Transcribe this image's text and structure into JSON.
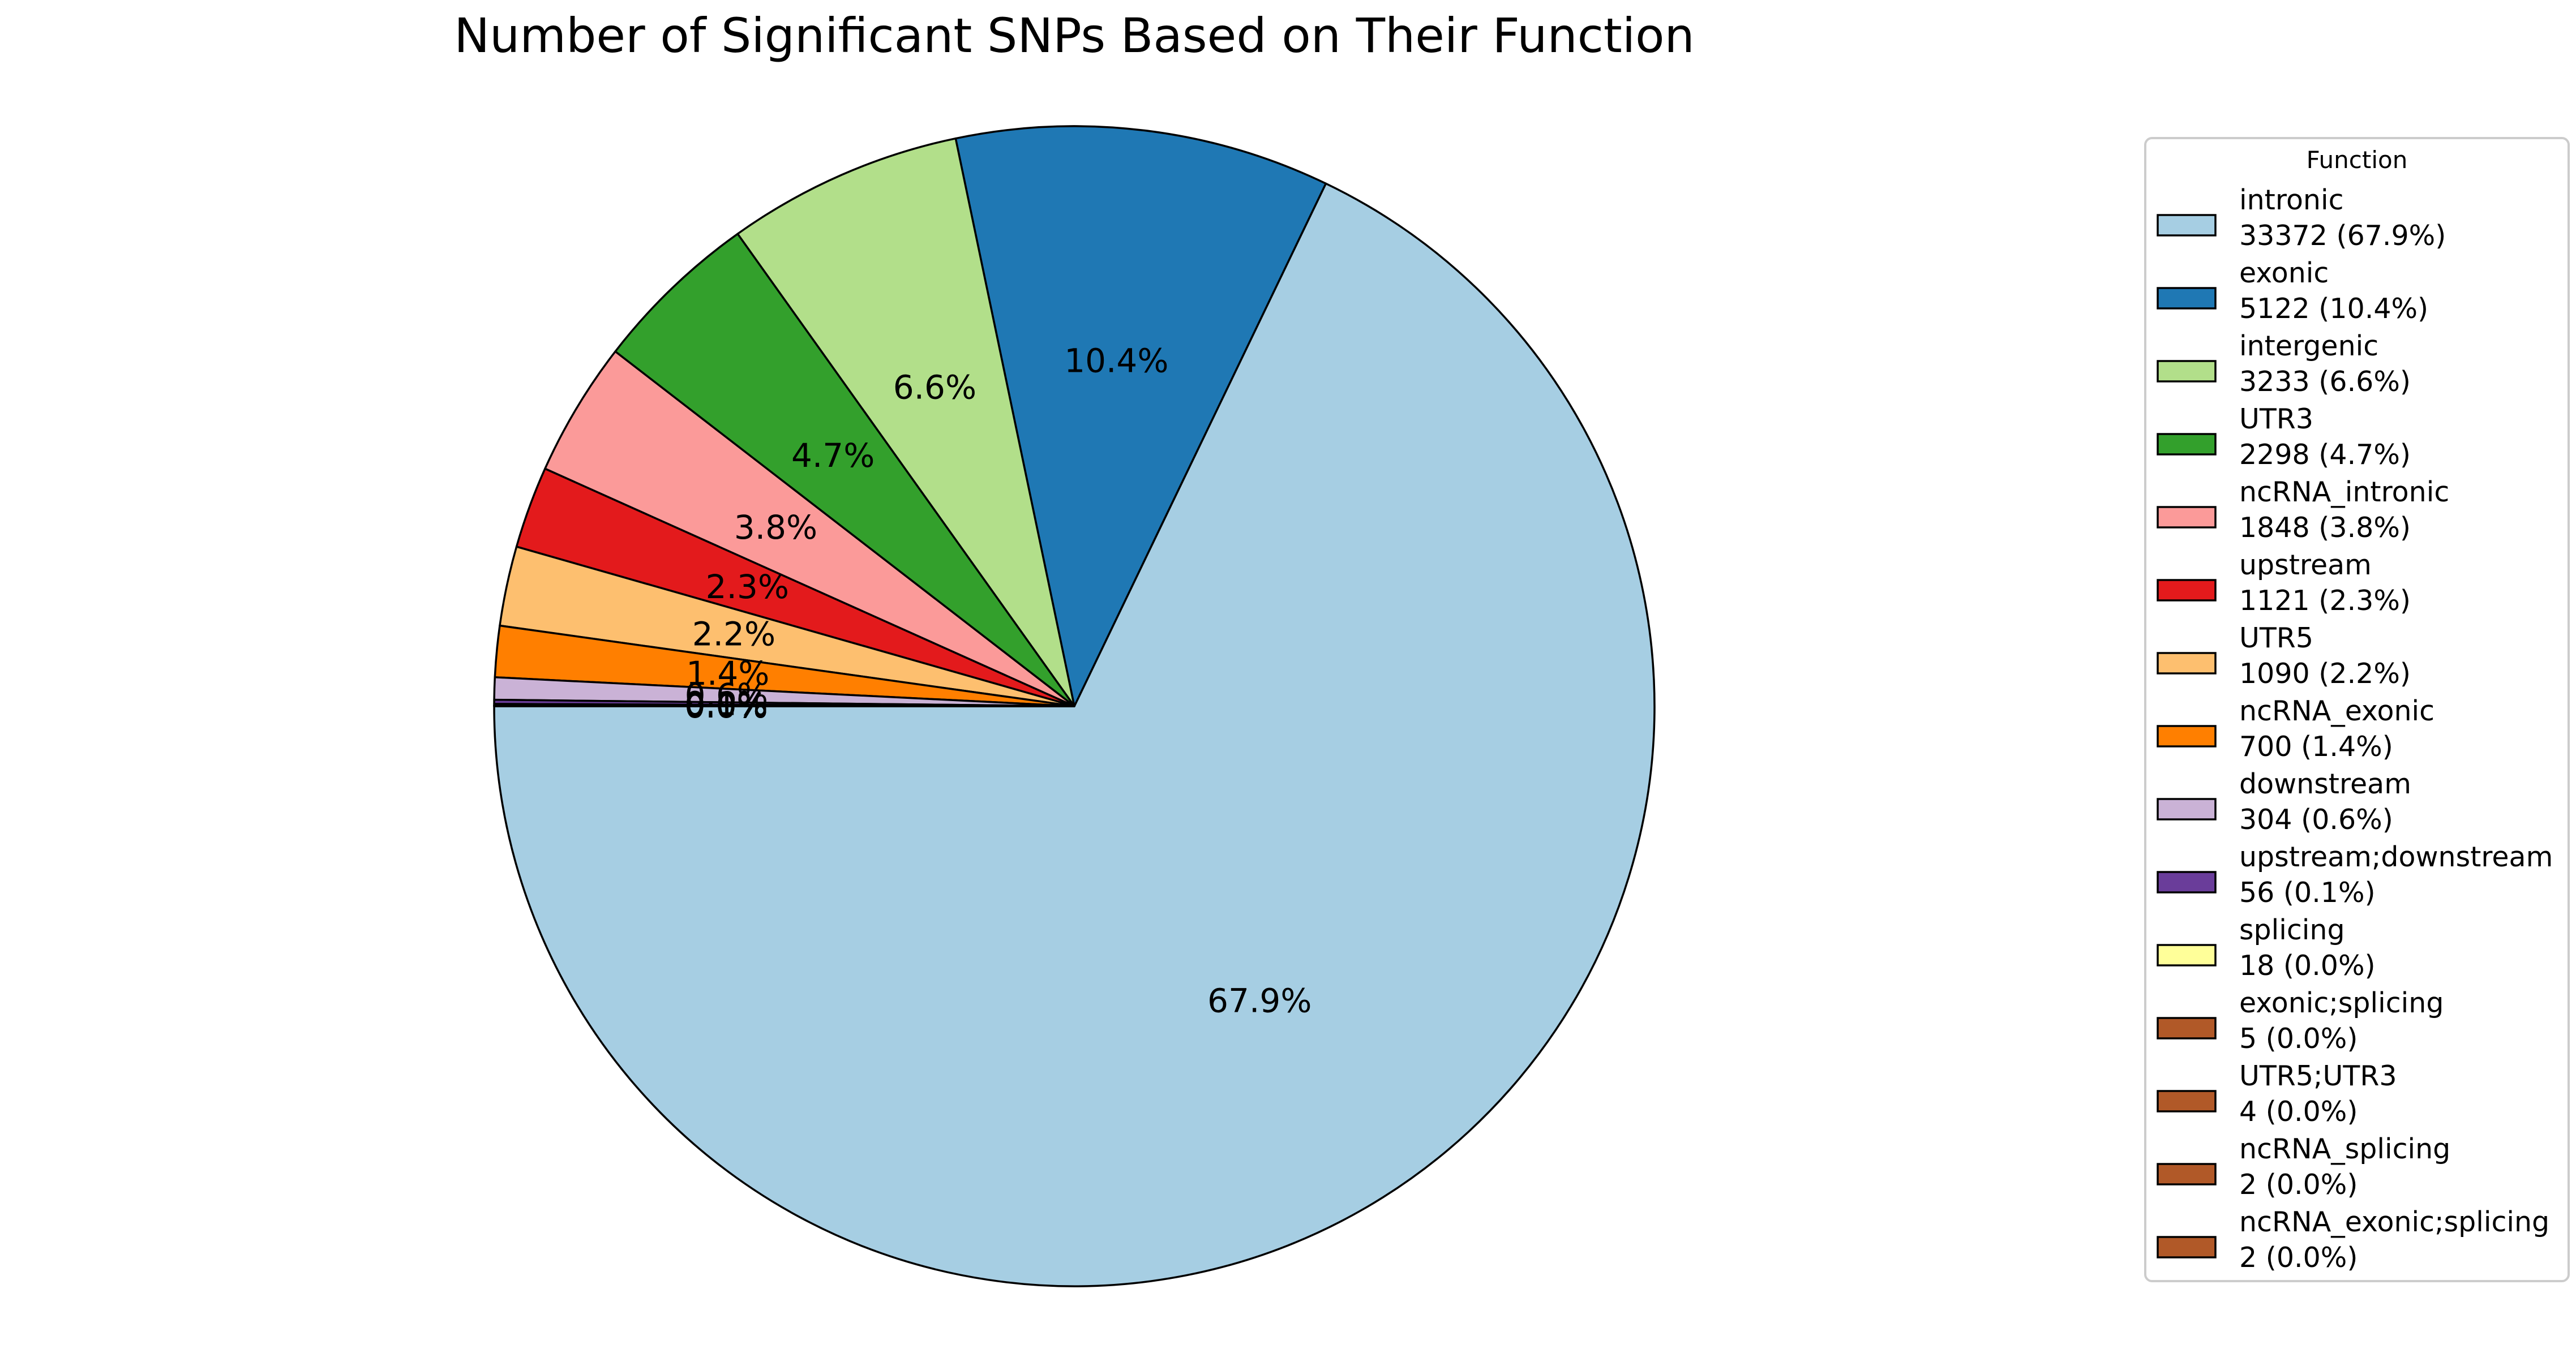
{
  "chart_data": {
    "type": "pie",
    "title": "Number of Significant SNPs Based on Their Function",
    "legend_title": "Function",
    "legend_position": "right",
    "start_angle_deg": 180,
    "direction": "counterclockwise",
    "slices": [
      {
        "label": "intronic",
        "value": 33372,
        "pct": "67.9%",
        "legend_line": "33372 (67.9%)",
        "color": "#a6cee3"
      },
      {
        "label": "exonic",
        "value": 5122,
        "pct": "10.4%",
        "legend_line": "5122 (10.4%)",
        "color": "#1f78b4"
      },
      {
        "label": "intergenic",
        "value": 3233,
        "pct": "6.6%",
        "legend_line": "3233 (6.6%)",
        "color": "#b2df8a"
      },
      {
        "label": "UTR3",
        "value": 2298,
        "pct": "4.7%",
        "legend_line": "2298 (4.7%)",
        "color": "#33a02c"
      },
      {
        "label": "ncRNA_intronic",
        "value": 1848,
        "pct": "3.8%",
        "legend_line": "1848 (3.8%)",
        "color": "#fb9a99"
      },
      {
        "label": "upstream",
        "value": 1121,
        "pct": "2.3%",
        "legend_line": "1121 (2.3%)",
        "color": "#e31a1c"
      },
      {
        "label": "UTR5",
        "value": 1090,
        "pct": "2.2%",
        "legend_line": "1090 (2.2%)",
        "color": "#fdbf6f"
      },
      {
        "label": "ncRNA_exonic",
        "value": 700,
        "pct": "1.4%",
        "legend_line": "700 (1.4%)",
        "color": "#ff7f00"
      },
      {
        "label": "downstream",
        "value": 304,
        "pct": "0.6%",
        "legend_line": "304 (0.6%)",
        "color": "#cab2d6"
      },
      {
        "label": "upstream;downstream",
        "value": 56,
        "pct": "0.1%",
        "legend_line": "56 (0.1%)",
        "color": "#6a3d9a"
      },
      {
        "label": "splicing",
        "value": 18,
        "pct": "0.0%",
        "legend_line": "18 (0.0%)",
        "color": "#ffff99"
      },
      {
        "label": "exonic;splicing",
        "value": 5,
        "pct": "0.0%",
        "legend_line": "5 (0.0%)",
        "color": "#b15928"
      },
      {
        "label": "UTR5;UTR3",
        "value": 4,
        "pct": "0.0%",
        "legend_line": "4 (0.0%)",
        "color": "#b15928"
      },
      {
        "label": "ncRNA_splicing",
        "value": 2,
        "pct": "0.0%",
        "legend_line": "2 (0.0%)",
        "color": "#b15928"
      },
      {
        "label": "ncRNA_exonic;splicing",
        "value": 2,
        "pct": "0.0%",
        "legend_line": "2 (0.0%)",
        "color": "#b15928"
      }
    ]
  }
}
